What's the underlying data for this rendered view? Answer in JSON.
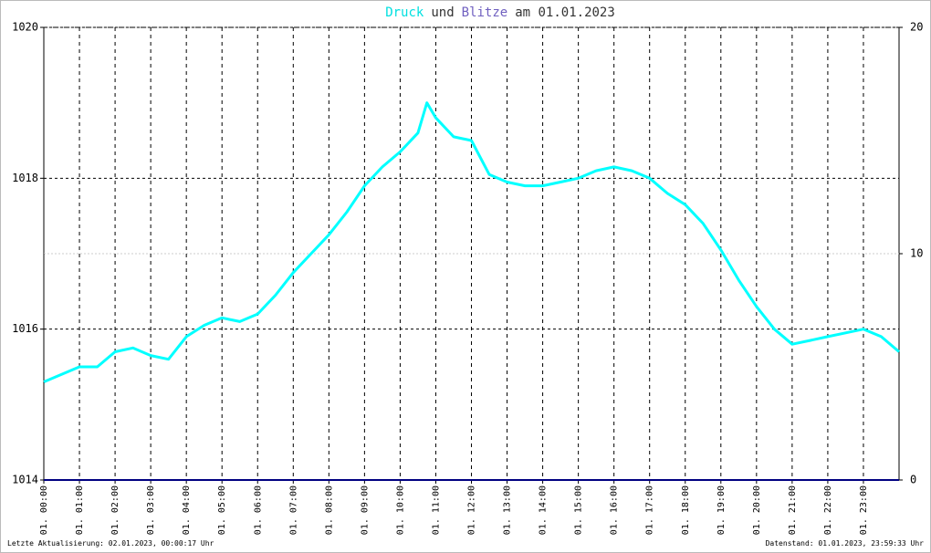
{
  "chart_data": {
    "type": "line",
    "title_parts": [
      {
        "text": "Druck",
        "color": "#00e0e0"
      },
      {
        "text": "und",
        "color": "#333333"
      },
      {
        "text": "Blitze",
        "color": "#7060c0"
      },
      {
        "text": "am 01.01.2023",
        "color": "#333333"
      }
    ],
    "xlim": [
      0,
      24
    ],
    "xticks": [
      {
        "value": 0,
        "label": "01. 00:00"
      },
      {
        "value": 1,
        "label": "01. 01:00"
      },
      {
        "value": 2,
        "label": "01. 02:00"
      },
      {
        "value": 3,
        "label": "01. 03:00"
      },
      {
        "value": 4,
        "label": "01. 04:00"
      },
      {
        "value": 5,
        "label": "01. 05:00"
      },
      {
        "value": 6,
        "label": "01. 06:00"
      },
      {
        "value": 7,
        "label": "01. 07:00"
      },
      {
        "value": 8,
        "label": "01. 08:00"
      },
      {
        "value": 9,
        "label": "01. 09:00"
      },
      {
        "value": 10,
        "label": "01. 10:00"
      },
      {
        "value": 11,
        "label": "01. 11:00"
      },
      {
        "value": 12,
        "label": "01. 12:00"
      },
      {
        "value": 13,
        "label": "01. 13:00"
      },
      {
        "value": 14,
        "label": "01. 14:00"
      },
      {
        "value": 15,
        "label": "01. 15:00"
      },
      {
        "value": 16,
        "label": "01. 16:00"
      },
      {
        "value": 17,
        "label": "01. 17:00"
      },
      {
        "value": 18,
        "label": "01. 18:00"
      },
      {
        "value": 19,
        "label": "01. 19:00"
      },
      {
        "value": 20,
        "label": "01. 20:00"
      },
      {
        "value": 21,
        "label": "01. 21:00"
      },
      {
        "value": 22,
        "label": "01. 22:00"
      },
      {
        "value": 23,
        "label": "01. 23:00"
      }
    ],
    "ylim": [
      1014,
      1020
    ],
    "yticks": [
      1014,
      1016,
      1018,
      1020
    ],
    "y2lim": [
      0,
      20
    ],
    "y2ticks": [
      0,
      10,
      20
    ],
    "grid": true,
    "series": [
      {
        "name": "Druck",
        "color": "#00ffff",
        "x": [
          0,
          0.5,
          1,
          1.5,
          2,
          2.5,
          3,
          3.5,
          4,
          4.5,
          5,
          5.5,
          6,
          6.5,
          7,
          7.5,
          8,
          8.5,
          9,
          9.5,
          10,
          10.5,
          10.75,
          11,
          11.5,
          12,
          12.5,
          13,
          13.5,
          14,
          14.5,
          15,
          15.5,
          16,
          16.5,
          17,
          17.5,
          18,
          18.5,
          19,
          19.5,
          20,
          20.5,
          21,
          21.5,
          22,
          22.5,
          23,
          23.5,
          24
        ],
        "values": [
          1015.3,
          1015.4,
          1015.5,
          1015.5,
          1015.7,
          1015.75,
          1015.65,
          1015.6,
          1015.9,
          1016.05,
          1016.15,
          1016.1,
          1016.2,
          1016.45,
          1016.75,
          1017.0,
          1017.25,
          1017.55,
          1017.9,
          1018.15,
          1018.35,
          1018.6,
          1019.0,
          1018.8,
          1018.55,
          1018.5,
          1018.05,
          1017.95,
          1017.9,
          1017.9,
          1017.95,
          1018.0,
          1018.1,
          1018.15,
          1018.1,
          1018.0,
          1017.8,
          1017.65,
          1017.4,
          1017.05,
          1016.65,
          1016.3,
          1016.0,
          1015.8,
          1015.85,
          1015.9,
          1015.95,
          1016.0,
          1015.9,
          1015.7
        ]
      },
      {
        "name": "Blitze",
        "color": "#000080",
        "axis": "y2",
        "x": [
          0,
          24
        ],
        "values": [
          0,
          0
        ]
      }
    ],
    "footer_left": "Letzte Aktualisierung: 02.01.2023, 00:00:17 Uhr",
    "footer_right": "Datenstand: 01.01.2023, 23:59:33 Uhr"
  }
}
